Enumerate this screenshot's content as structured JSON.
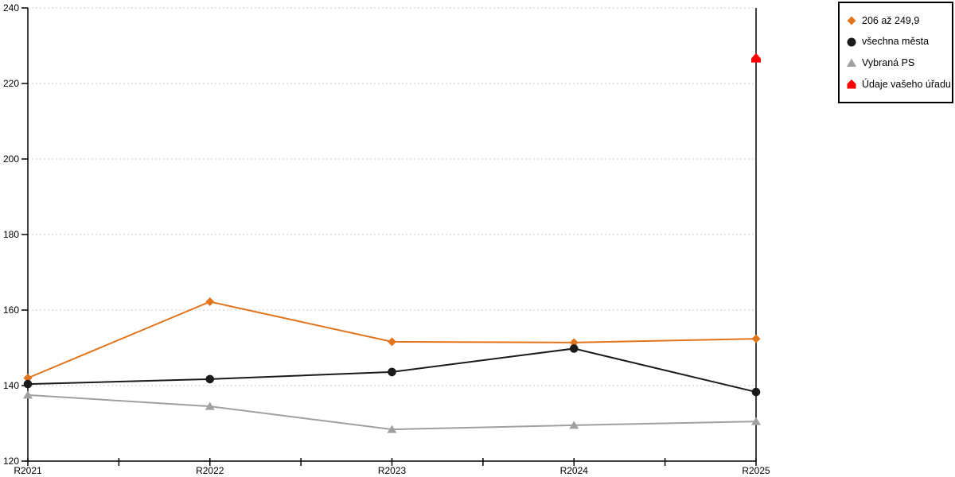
{
  "chart_data": {
    "type": "line",
    "categories": [
      "R2021",
      "R2022",
      "R2023",
      "R2024",
      "R2025"
    ],
    "yticks": [
      120,
      140,
      160,
      180,
      200,
      220,
      240
    ],
    "ylim": [
      120,
      240
    ],
    "grid": "horizontal-dotted",
    "legend_position": "top-right",
    "series": [
      {
        "name": "206 až 249,9",
        "color": "#E2751C",
        "marker": "diamond",
        "line": true,
        "values": [
          142.0,
          162.2,
          151.6,
          151.4,
          152.4
        ]
      },
      {
        "name": "všechna města",
        "color": "#1A1A1A",
        "marker": "circle",
        "line": true,
        "values": [
          140.4,
          141.7,
          143.6,
          149.8,
          138.3
        ]
      },
      {
        "name": "Vybraná PS",
        "color": "#A0A0A0",
        "marker": "triangle-up",
        "line": true,
        "values": [
          137.5,
          134.5,
          128.4,
          129.5,
          130.5
        ]
      },
      {
        "name": "Údaje vašeho úřadu",
        "color": "#FE0000",
        "marker": "pentagon-up",
        "line": false,
        "values": [
          null,
          null,
          null,
          null,
          226.7
        ]
      }
    ],
    "colors": {
      "axis": "#000000",
      "gridline": "#C9C9C9",
      "background": "#FFFFFF",
      "text": "#000000"
    }
  }
}
